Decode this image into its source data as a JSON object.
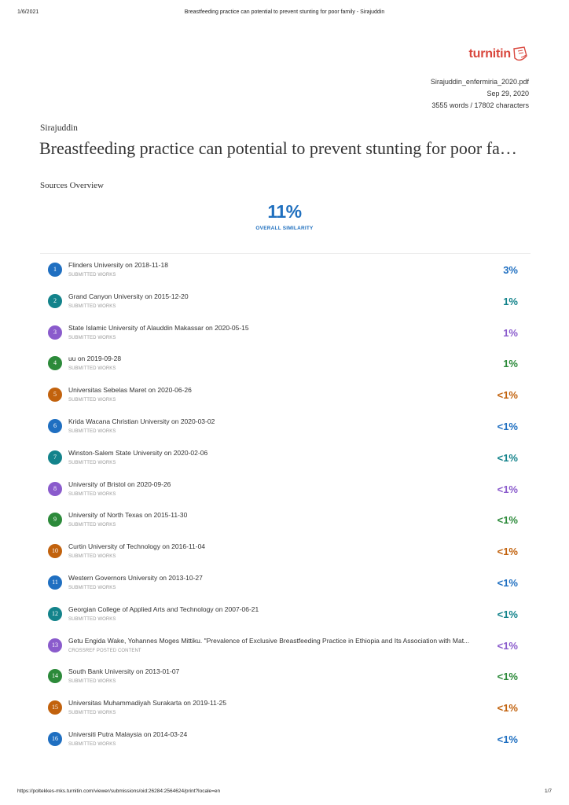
{
  "print_header": {
    "date": "1/6/2021",
    "title": "Breastfeeding practice can potential to prevent stunting for poor family - Sirajuddin"
  },
  "print_footer": {
    "url": "https://poltekkes-mks.turnitin.com/viewer/submissions/oid:26284:2564624/print?locale=en",
    "page": "1/7"
  },
  "logo": {
    "text": "turnitin",
    "icon": "turnitin-logo-icon"
  },
  "file": {
    "name": "Sirajuddin_enfermiria_2020.pdf",
    "date": "Sep 29, 2020",
    "counts": "3555 words / 17802 characters"
  },
  "author": "Sirajuddin",
  "doc_title": "Breastfeeding practice can potential to prevent stunting for poor family",
  "sources_heading": "Sources Overview",
  "overall": {
    "percent": "11%",
    "label": "OVERALL SIMILARITY"
  },
  "colors": {
    "blue": "#1f6fc1",
    "teal": "#13838b",
    "purple": "#8a5bcc",
    "green": "#2c8a3a",
    "orange": "#c2620d"
  },
  "sources": [
    {
      "num": "1",
      "name": "Flinders University on 2018-11-18",
      "kind": "SUBMITTED WORKS",
      "percent": "3%",
      "color": "blue"
    },
    {
      "num": "2",
      "name": "Grand Canyon University on 2015-12-20",
      "kind": "SUBMITTED WORKS",
      "percent": "1%",
      "color": "teal"
    },
    {
      "num": "3",
      "name": "State Islamic University of Alauddin Makassar on 2020-05-15",
      "kind": "SUBMITTED WORKS",
      "percent": "1%",
      "color": "purple"
    },
    {
      "num": "4",
      "name": "uu on 2019-09-28",
      "kind": "SUBMITTED WORKS",
      "percent": "1%",
      "color": "green"
    },
    {
      "num": "5",
      "name": "Universitas Sebelas Maret on 2020-06-26",
      "kind": "SUBMITTED WORKS",
      "percent": "<1%",
      "color": "orange"
    },
    {
      "num": "6",
      "name": "Krida Wacana Christian University on 2020-03-02",
      "kind": "SUBMITTED WORKS",
      "percent": "<1%",
      "color": "blue"
    },
    {
      "num": "7",
      "name": "Winston-Salem State University on 2020-02-06",
      "kind": "SUBMITTED WORKS",
      "percent": "<1%",
      "color": "teal"
    },
    {
      "num": "8",
      "name": "University of Bristol on 2020-09-26",
      "kind": "SUBMITTED WORKS",
      "percent": "<1%",
      "color": "purple"
    },
    {
      "num": "9",
      "name": "University of North Texas on 2015-11-30",
      "kind": "SUBMITTED WORKS",
      "percent": "<1%",
      "color": "green"
    },
    {
      "num": "10",
      "name": "Curtin University of Technology on 2016-11-04",
      "kind": "SUBMITTED WORKS",
      "percent": "<1%",
      "color": "orange"
    },
    {
      "num": "11",
      "name": "Western Governors University on 2013-10-27",
      "kind": "SUBMITTED WORKS",
      "percent": "<1%",
      "color": "blue"
    },
    {
      "num": "12",
      "name": "Georgian College of Applied Arts and Technology on 2007-06-21",
      "kind": "SUBMITTED WORKS",
      "percent": "<1%",
      "color": "teal"
    },
    {
      "num": "13",
      "name": "Getu Engida Wake, Yohannes Moges Mittiku. \"Prevalence of Exclusive Breastfeeding Practice in Ethiopia and Its Association with Mat...",
      "kind": "CROSSREF POSTED CONTENT",
      "percent": "<1%",
      "color": "purple"
    },
    {
      "num": "14",
      "name": "South Bank University on 2013-01-07",
      "kind": "SUBMITTED WORKS",
      "percent": "<1%",
      "color": "green"
    },
    {
      "num": "15",
      "name": "Universitas Muhammadiyah Surakarta on 2019-11-25",
      "kind": "SUBMITTED WORKS",
      "percent": "<1%",
      "color": "orange"
    },
    {
      "num": "16",
      "name": "Universiti Putra Malaysia on 2014-03-24",
      "kind": "SUBMITTED WORKS",
      "percent": "<1%",
      "color": "blue"
    }
  ]
}
